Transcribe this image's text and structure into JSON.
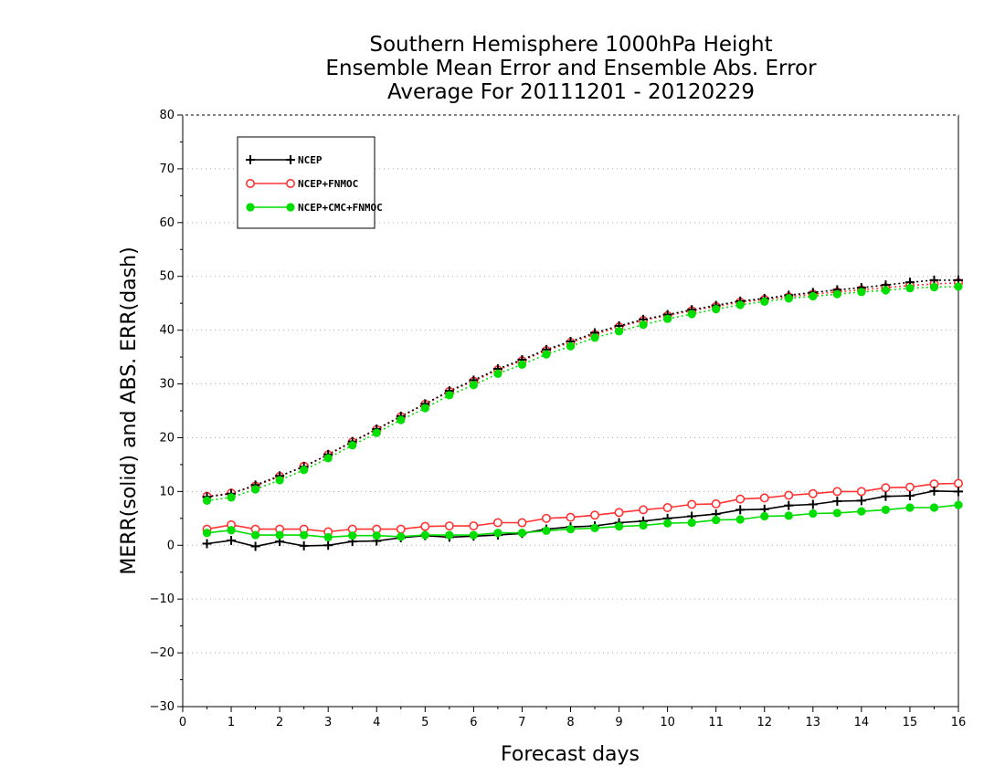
{
  "chart_data": {
    "type": "line",
    "title_lines": [
      "Southern Hemisphere 1000hPa Height",
      "Ensemble Mean Error and Ensemble Abs. Error",
      "Average For 20111201 - 20120229"
    ],
    "xlabel": "Forecast days",
    "ylabel": "MERR(solid) and ABS. ERR(dash)",
    "xlim": [
      0,
      16
    ],
    "ylim": [
      -30,
      80
    ],
    "xticks": [
      0,
      1,
      2,
      3,
      4,
      5,
      6,
      7,
      8,
      9,
      10,
      11,
      12,
      13,
      14,
      15,
      16
    ],
    "yticks": [
      -30,
      -20,
      -10,
      0,
      10,
      20,
      30,
      40,
      50,
      60,
      70,
      80
    ],
    "grid": "horizontal dotted",
    "legend_position": "top-left",
    "x": [
      0.5,
      1,
      1.5,
      2,
      2.5,
      3,
      3.5,
      4,
      4.5,
      5,
      5.5,
      6,
      6.5,
      7,
      7.5,
      8,
      8.5,
      9,
      9.5,
      10,
      10.5,
      11,
      11.5,
      12,
      12.5,
      13,
      13.5,
      14,
      14.5,
      15,
      15.5,
      16
    ],
    "series": [
      {
        "name": "NCEP",
        "color": "#000000",
        "marker": "plus",
        "merr": [
          0.3,
          0.9,
          -0.2,
          0.7,
          -0.1,
          0.0,
          0.7,
          0.8,
          1.4,
          1.8,
          1.5,
          1.7,
          1.9,
          2.2,
          3.0,
          3.4,
          3.6,
          4.2,
          4.5,
          5.0,
          5.4,
          5.8,
          6.6,
          6.7,
          7.4,
          7.6,
          8.2,
          8.3,
          9.1,
          9.2,
          10.1,
          10.0
        ],
        "abs_err": [
          9.0,
          9.6,
          11.2,
          12.9,
          14.6,
          16.9,
          19.3,
          21.6,
          24.0,
          26.3,
          28.7,
          30.7,
          32.8,
          34.5,
          36.4,
          37.9,
          39.5,
          40.8,
          42.0,
          42.9,
          43.8,
          44.6,
          45.4,
          45.9,
          46.5,
          47.0,
          47.5,
          47.9,
          48.4,
          48.9,
          49.3,
          49.3
        ]
      },
      {
        "name": "NCEP+FNMOC",
        "color": "#ff3333",
        "marker": "open-circle",
        "merr": [
          3.0,
          3.8,
          3.0,
          3.0,
          3.0,
          2.5,
          3.0,
          3.0,
          3.0,
          3.5,
          3.6,
          3.6,
          4.2,
          4.2,
          5.0,
          5.2,
          5.6,
          6.1,
          6.6,
          7.0,
          7.6,
          7.7,
          8.6,
          8.8,
          9.3,
          9.6,
          10.0,
          10.0,
          10.7,
          10.8,
          11.4,
          11.5
        ],
        "abs_err": [
          9.1,
          9.7,
          11.0,
          12.8,
          14.7,
          16.8,
          19.2,
          21.5,
          23.9,
          26.2,
          28.6,
          30.5,
          32.6,
          34.3,
          36.2,
          37.7,
          39.2,
          40.6,
          41.8,
          42.7,
          43.6,
          44.4,
          45.2,
          45.7,
          46.2,
          46.7,
          47.1,
          47.5,
          47.9,
          48.3,
          48.6,
          48.8
        ]
      },
      {
        "name": "NCEP+CMC+FNMOC",
        "color": "#00dd00",
        "marker": "filled-circle",
        "merr": [
          2.3,
          2.8,
          1.9,
          1.9,
          1.9,
          1.5,
          1.8,
          1.8,
          1.6,
          1.9,
          1.9,
          1.9,
          2.3,
          2.3,
          2.7,
          3.0,
          3.2,
          3.5,
          3.7,
          4.1,
          4.2,
          4.7,
          4.8,
          5.4,
          5.5,
          5.9,
          6.0,
          6.3,
          6.6,
          7.0,
          7.0,
          7.5
        ],
        "abs_err": [
          8.3,
          8.9,
          10.4,
          12.1,
          14.0,
          16.2,
          18.6,
          20.9,
          23.3,
          25.5,
          27.9,
          29.8,
          31.9,
          33.6,
          35.5,
          37.0,
          38.6,
          39.8,
          41.0,
          42.1,
          43.0,
          43.9,
          44.7,
          45.3,
          45.9,
          46.3,
          46.7,
          47.1,
          47.4,
          47.8,
          48.0,
          48.1
        ]
      }
    ]
  }
}
